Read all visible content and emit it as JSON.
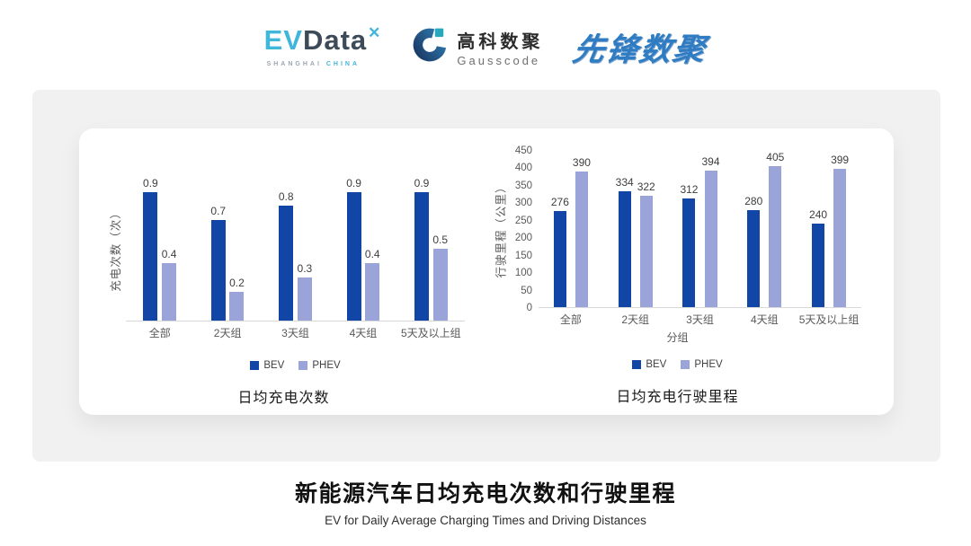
{
  "header": {
    "logos": {
      "evdata": {
        "ev": "EV",
        "data": "Data",
        "sub_left": "SHANGHAI",
        "sub_right": "CHINA"
      },
      "gausscode": {
        "cn": "高科数聚",
        "en": "Gausscode"
      },
      "xianfeng": {
        "text": "先锋数聚"
      }
    }
  },
  "chart_data": [
    {
      "type": "bar",
      "title": "日均充电次数",
      "ylabel": "充电次数（次）",
      "xlabel": "",
      "categories": [
        "全部",
        "2天组",
        "3天组",
        "4天组",
        "5天及以上组"
      ],
      "series": [
        {
          "name": "BEV",
          "color": "#1145A6",
          "values": [
            0.9,
            0.7,
            0.8,
            0.9,
            0.9
          ]
        },
        {
          "name": "PHEV",
          "color": "#9AA4D8",
          "values": [
            0.4,
            0.2,
            0.3,
            0.4,
            0.5
          ]
        }
      ],
      "ylim": [
        0,
        1.0
      ],
      "grid": false,
      "legend_position": "bottom"
    },
    {
      "type": "bar",
      "title": "日均充电行驶里程",
      "ylabel": "行驶里程（公里）",
      "xlabel": "分组",
      "categories": [
        "全部",
        "2天组",
        "3天组",
        "4天组",
        "5天及以上组"
      ],
      "yticks": [
        "450",
        "400",
        "350",
        "300",
        "250",
        "200",
        "150",
        "100",
        "50",
        "0"
      ],
      "series": [
        {
          "name": "BEV",
          "color": "#1145A6",
          "values": [
            276,
            334,
            312,
            280,
            240
          ]
        },
        {
          "name": "PHEV",
          "color": "#9AA4D8",
          "values": [
            390,
            322,
            394,
            405,
            399
          ]
        }
      ],
      "ylim": [
        0,
        450
      ],
      "grid": false,
      "legend_position": "bottom"
    }
  ],
  "footer": {
    "title": "新能源汽车日均充电次数和行驶里程",
    "subtitle": "EV for Daily Average Charging Times and Driving Distances"
  },
  "colors": {
    "bev": "#1145A6",
    "phev": "#9AA4D8",
    "panel_bg": "#F1F1F1",
    "axis_line": "#D9D9D9",
    "evdata_blue": "#41B6DB",
    "evdata_slate": "#3D4A57",
    "gausscode_navy": "#1E3F6E",
    "gausscode_teal": "#27A8BE",
    "xianfeng_blue": "#2F7CC3"
  }
}
